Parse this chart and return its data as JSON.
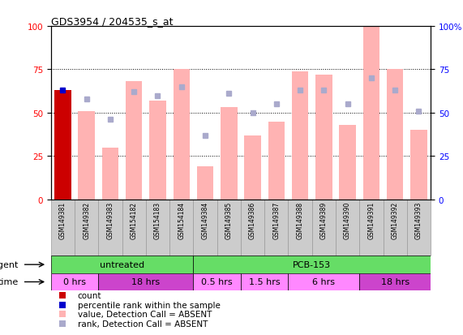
{
  "title": "GDS3954 / 204535_s_at",
  "samples": [
    "GSM149381",
    "GSM149382",
    "GSM149383",
    "GSM154182",
    "GSM154183",
    "GSM154184",
    "GSM149384",
    "GSM149385",
    "GSM149386",
    "GSM149387",
    "GSM149388",
    "GSM149389",
    "GSM149390",
    "GSM149391",
    "GSM149392",
    "GSM149393"
  ],
  "bar_values": [
    63,
    51,
    30,
    68,
    57,
    75,
    19,
    53,
    37,
    45,
    74,
    72,
    43,
    100,
    75,
    40
  ],
  "rank_dots": [
    63,
    58,
    46,
    62,
    60,
    65,
    37,
    61,
    50,
    55,
    63,
    63,
    55,
    70,
    63,
    51
  ],
  "bar_color_absent": "#FFB3B3",
  "bar_color_count": "#CC0000",
  "rank_dot_color_absent": "#AAAACC",
  "rank_dot_color_present": "#0000CC",
  "count_bar_index": 0,
  "ylim": [
    0,
    100
  ],
  "yticks": [
    0,
    25,
    50,
    75,
    100
  ],
  "agent_groups": [
    {
      "label": "untreated",
      "start": 0,
      "end": 6,
      "color": "#66DD66"
    },
    {
      "label": "PCB-153",
      "start": 6,
      "end": 16,
      "color": "#66DD66"
    }
  ],
  "time_groups": [
    {
      "label": "0 hrs",
      "start": 0,
      "end": 2,
      "color": "#FF88FF"
    },
    {
      "label": "18 hrs",
      "start": 2,
      "end": 6,
      "color": "#CC44CC"
    },
    {
      "label": "0.5 hrs",
      "start": 6,
      "end": 8,
      "color": "#FF88FF"
    },
    {
      "label": "1.5 hrs",
      "start": 8,
      "end": 10,
      "color": "#FF88FF"
    },
    {
      "label": "6 hrs",
      "start": 10,
      "end": 13,
      "color": "#FF88FF"
    },
    {
      "label": "18 hrs",
      "start": 13,
      "end": 16,
      "color": "#CC44CC"
    }
  ],
  "legend_items": [
    {
      "label": "count",
      "color": "#CC0000"
    },
    {
      "label": "percentile rank within the sample",
      "color": "#0000CC"
    },
    {
      "label": "value, Detection Call = ABSENT",
      "color": "#FFB3B3"
    },
    {
      "label": "rank, Detection Call = ABSENT",
      "color": "#AAAACC"
    }
  ],
  "sample_box_color": "#CCCCCC",
  "sample_box_edge": "#999999",
  "background_color": "#FFFFFF",
  "label_agent": "agent",
  "label_time": "time"
}
